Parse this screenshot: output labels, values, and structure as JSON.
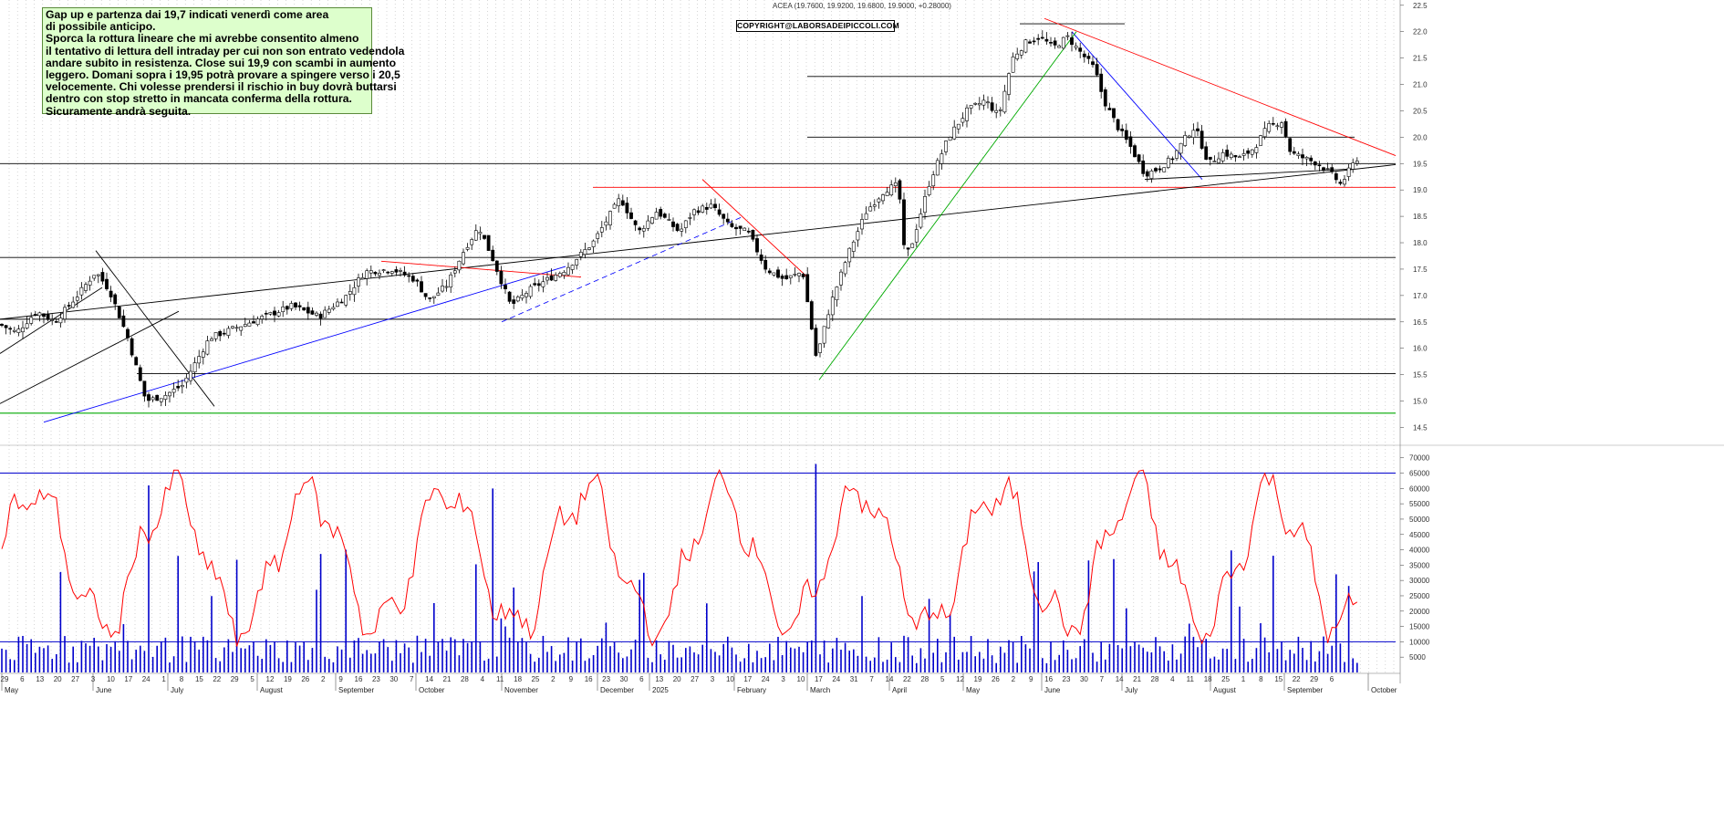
{
  "header": {
    "symbol_line": "ACEA (19.7600, 19.9200, 19.6800, 19.9000, +0.28000)",
    "copyright": "COPYRIGHT@LABORSADEIPICCOLI.COM"
  },
  "note": {
    "lines": [
      "Gap up e partenza dai 19,7 indicati venerdì come area",
      "di possibile anticipo.",
      "Sporca la rottura lineare che mi avrebbe consentito almeno",
      "il tentativo di lettura dell intraday per cui non son entrato vedendola",
      "andare subito in resistenza. Close sui 19,9 con scambi in aumento",
      "leggero. Domani sopra i 19,95 potrà provare a spingere verso i 20,5",
      "velocemente. Chi volesse prendersi il rischio in buy dovrà buttarsi",
      "dentro  con stop stretto in mancata conferma della rottura.",
      "Sicuramente andrà seguita."
    ]
  },
  "chart_data": [
    {
      "type": "candlestick",
      "title": "ACEA (19.7600, 19.9200, 19.6800, 19.9000, +0.28000)",
      "ylim": [
        14.3,
        22.6
      ],
      "y_ticks": [
        "14.5",
        "15.0",
        "15.5",
        "16.0",
        "16.5",
        "17.0",
        "17.5",
        "18.0",
        "18.5",
        "19.0",
        "19.5",
        "20.0",
        "20.5",
        "21.0",
        "21.5",
        "22.0",
        "22.5"
      ],
      "y_ticks_num": [
        14.5,
        15.0,
        15.5,
        16.0,
        16.5,
        17.0,
        17.5,
        18.0,
        18.5,
        19.0,
        19.5,
        20.0,
        20.5,
        21.0,
        21.5,
        22.0,
        22.5
      ],
      "close_anchors": [
        [
          0,
          16.45
        ],
        [
          18,
          16.3
        ],
        [
          40,
          16.7
        ],
        [
          60,
          16.5
        ],
        [
          85,
          17.0
        ],
        [
          105,
          17.45
        ],
        [
          120,
          17.1
        ],
        [
          140,
          16.2
        ],
        [
          160,
          15.0
        ],
        [
          180,
          15.1
        ],
        [
          200,
          15.3
        ],
        [
          230,
          16.2
        ],
        [
          260,
          16.4
        ],
        [
          290,
          16.6
        ],
        [
          320,
          16.8
        ],
        [
          350,
          16.6
        ],
        [
          380,
          17.0
        ],
        [
          400,
          17.45
        ],
        [
          430,
          17.5
        ],
        [
          455,
          17.3
        ],
        [
          470,
          16.9
        ],
        [
          490,
          17.2
        ],
        [
          510,
          17.9
        ],
        [
          525,
          18.3
        ],
        [
          540,
          17.7
        ],
        [
          560,
          16.8
        ],
        [
          580,
          17.1
        ],
        [
          600,
          17.3
        ],
        [
          620,
          17.5
        ],
        [
          650,
          18.0
        ],
        [
          680,
          18.85
        ],
        [
          700,
          18.2
        ],
        [
          720,
          18.6
        ],
        [
          745,
          18.2
        ],
        [
          760,
          18.6
        ],
        [
          780,
          18.7
        ],
        [
          800,
          18.3
        ],
        [
          820,
          18.2
        ],
        [
          840,
          17.5
        ],
        [
          860,
          17.3
        ],
        [
          880,
          17.45
        ],
        [
          895,
          15.8
        ],
        [
          910,
          16.8
        ],
        [
          930,
          17.8
        ],
        [
          950,
          18.6
        ],
        [
          970,
          19.0
        ],
        [
          985,
          19.1
        ],
        [
          992,
          17.7
        ],
        [
          1000,
          18.0
        ],
        [
          1020,
          19.2
        ],
        [
          1040,
          20.0
        ],
        [
          1060,
          20.5
        ],
        [
          1080,
          20.7
        ],
        [
          1095,
          20.4
        ],
        [
          1110,
          21.5
        ],
        [
          1125,
          21.8
        ],
        [
          1140,
          21.9
        ],
        [
          1155,
          21.7
        ],
        [
          1170,
          21.9
        ],
        [
          1185,
          21.6
        ],
        [
          1200,
          21.3
        ],
        [
          1210,
          20.7
        ],
        [
          1225,
          20.2
        ],
        [
          1240,
          19.8
        ],
        [
          1255,
          19.3
        ],
        [
          1270,
          19.4
        ],
        [
          1285,
          19.6
        ],
        [
          1300,
          20.0
        ],
        [
          1310,
          20.2
        ],
        [
          1325,
          19.5
        ],
        [
          1340,
          19.7
        ],
        [
          1360,
          19.6
        ],
        [
          1375,
          19.8
        ],
        [
          1390,
          20.2
        ],
        [
          1405,
          20.3
        ],
        [
          1415,
          19.7
        ],
        [
          1430,
          19.6
        ],
        [
          1445,
          19.5
        ],
        [
          1460,
          19.3
        ],
        [
          1470,
          19.1
        ],
        [
          1480,
          19.4
        ],
        [
          1488,
          19.6
        ],
        [
          1492,
          19.9
        ]
      ],
      "horizontal_levels_black": [
        16.55,
        15.52,
        17.72,
        19.5,
        20.0,
        21.15,
        22.15
      ],
      "horizontal_levels_red": [
        19.05
      ],
      "horizontal_levels_green": [
        14.77
      ],
      "x_day_labels": [
        "29",
        "6",
        "13",
        "20",
        "27",
        "3",
        "10",
        "17",
        "24",
        "1",
        "8",
        "15",
        "22",
        "29",
        "5",
        "12",
        "19",
        "26",
        "2",
        "9",
        "16",
        "23",
        "30",
        "7",
        "14",
        "21",
        "28",
        "4",
        "11",
        "18",
        "25",
        "2",
        "9",
        "16",
        "23",
        "30",
        "6",
        "13",
        "20",
        "27",
        "3",
        "10",
        "17",
        "24",
        "3",
        "10",
        "17",
        "24",
        "31",
        "7",
        "14",
        "22",
        "28",
        "5",
        "12",
        "19",
        "26",
        "2",
        "9",
        "16",
        "23",
        "30",
        "7",
        "14",
        "21",
        "28",
        "4",
        "11",
        "18",
        "25",
        "1",
        "8",
        "15",
        "22",
        "29",
        "6"
      ],
      "x_month_labels": [
        "May",
        "June",
        "July",
        "August",
        "September",
        "October",
        "November",
        "December",
        "2025",
        "February",
        "March",
        "April",
        "May",
        "June",
        "July",
        "August",
        "September",
        "October"
      ]
    },
    {
      "type": "bar+line",
      "series": [
        {
          "values_desc": "daily volume (blue bars)"
        },
        {
          "values_desc": "oscillator (red line)"
        }
      ],
      "ylim": [
        0,
        72000
      ],
      "y_ticks": [
        "5000",
        "10000",
        "15000",
        "20000",
        "25000",
        "30000",
        "35000",
        "40000",
        "45000",
        "50000",
        "55000",
        "60000",
        "65000",
        "70000"
      ],
      "y_ticks_num": [
        5000,
        10000,
        15000,
        20000,
        25000,
        30000,
        35000,
        40000,
        45000,
        50000,
        55000,
        60000,
        65000,
        70000
      ],
      "reference_levels": [
        10000,
        65000
      ]
    }
  ],
  "colors": {
    "candle": "#000000",
    "grid": "#bbbbbb",
    "volume": "#0000cc",
    "oscillator": "#ff0000",
    "trend_blue": "#0000ff",
    "trend_red": "#ff0000",
    "trend_green": "#00aa00",
    "note_bg": "#ddffcc"
  }
}
